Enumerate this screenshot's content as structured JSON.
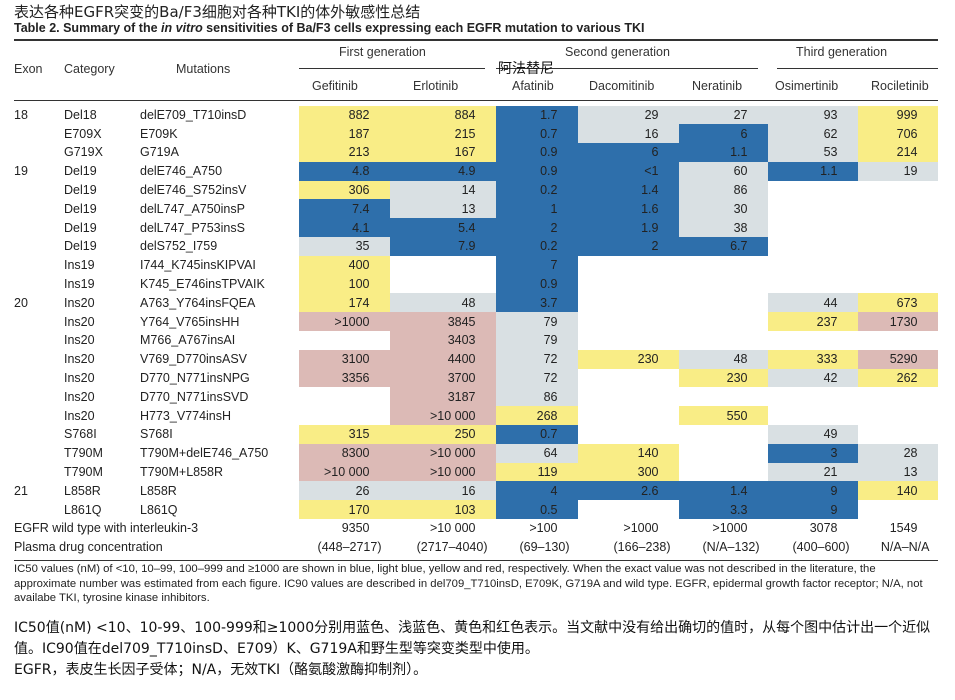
{
  "title_cn": "表达各种EGFR突变的Ba/F3细胞对各种TKI的体外敏感性总结",
  "title_en": {
    "prefix": "Table 2.   Summary of the ",
    "italic": "in vitro",
    "suffix": " sensitivities of Ba/F3 cells expressing each EGFR mutation to various TKI"
  },
  "headers": {
    "exon": "Exon",
    "category": "Category",
    "mutations": "Mutations",
    "groups": [
      "First generation",
      "Second generation",
      "Third generation"
    ],
    "drugs": [
      "Gefitinib",
      "Erlotinib",
      "Afatinib",
      "Dacomitinib",
      "Neratinib",
      "Osimertinib",
      "Rociletinib"
    ],
    "afatinib_cn": "阿法替尼"
  },
  "colors": {
    "y": "#f9ed86",
    "b": "#2e6fab",
    "l": "#d9e0e3",
    "r": "#dcbab6"
  },
  "rows": [
    {
      "exon": "18",
      "cat": "Del18",
      "mut": "delE709_T710insD",
      "cells": [
        [
          "882",
          "y"
        ],
        [
          "884",
          "y"
        ],
        [
          "1.7",
          "b"
        ],
        [
          "29",
          "l"
        ],
        [
          "27",
          "l"
        ],
        [
          "93",
          "l"
        ],
        [
          "999",
          "y"
        ]
      ]
    },
    {
      "exon": "",
      "cat": "E709X",
      "mut": "E709K",
      "cells": [
        [
          "187",
          "y"
        ],
        [
          "215",
          "y"
        ],
        [
          "0.7",
          "b"
        ],
        [
          "16",
          "l"
        ],
        [
          "6",
          "b"
        ],
        [
          "62",
          "l"
        ],
        [
          "706",
          "y"
        ]
      ]
    },
    {
      "exon": "",
      "cat": "G719X",
      "mut": "G719A",
      "cells": [
        [
          "213",
          "y"
        ],
        [
          "167",
          "y"
        ],
        [
          "0.9",
          "b"
        ],
        [
          "6",
          "b"
        ],
        [
          "1.1",
          "b"
        ],
        [
          "53",
          "l"
        ],
        [
          "214",
          "y"
        ]
      ]
    },
    {
      "exon": "19",
      "cat": "Del19",
      "mut": "delE746_A750",
      "cells": [
        [
          "4.8",
          "b"
        ],
        [
          "4.9",
          "b"
        ],
        [
          "0.9",
          "b"
        ],
        [
          "<1",
          "b"
        ],
        [
          "60",
          "l"
        ],
        [
          "1.1",
          "b"
        ],
        [
          "19",
          "l"
        ]
      ]
    },
    {
      "exon": "",
      "cat": "Del19",
      "mut": "delE746_S752insV",
      "cells": [
        [
          "306",
          "y"
        ],
        [
          "14",
          "l"
        ],
        [
          "0.2",
          "b"
        ],
        [
          "1.4",
          "b"
        ],
        [
          "86",
          "l"
        ],
        [
          "",
          ""
        ],
        [
          "",
          ""
        ]
      ]
    },
    {
      "exon": "",
      "cat": "Del19",
      "mut": "delL747_A750insP",
      "cells": [
        [
          "7.4",
          "b"
        ],
        [
          "13",
          "l"
        ],
        [
          "1",
          "b"
        ],
        [
          "1.6",
          "b"
        ],
        [
          "30",
          "l"
        ],
        [
          "",
          ""
        ],
        [
          "",
          ""
        ]
      ]
    },
    {
      "exon": "",
      "cat": "Del19",
      "mut": "delL747_P753insS",
      "cells": [
        [
          "4.1",
          "b"
        ],
        [
          "5.4",
          "b"
        ],
        [
          "2",
          "b"
        ],
        [
          "1.9",
          "b"
        ],
        [
          "38",
          "l"
        ],
        [
          "",
          ""
        ],
        [
          "",
          ""
        ]
      ]
    },
    {
      "exon": "",
      "cat": "Del19",
      "mut": "delS752_I759",
      "cells": [
        [
          "35",
          "l"
        ],
        [
          "7.9",
          "b"
        ],
        [
          "0.2",
          "b"
        ],
        [
          "2",
          "b"
        ],
        [
          "6.7",
          "b"
        ],
        [
          "",
          ""
        ],
        [
          "",
          ""
        ]
      ]
    },
    {
      "exon": "",
      "cat": "Ins19",
      "mut": "I744_K745insKIPVAI",
      "cells": [
        [
          "400",
          "y"
        ],
        [
          "",
          ""
        ],
        [
          "7",
          "b"
        ],
        [
          "",
          ""
        ],
        [
          "",
          ""
        ],
        [
          "",
          ""
        ],
        [
          "",
          ""
        ]
      ]
    },
    {
      "exon": "",
      "cat": "Ins19",
      "mut": "K745_E746insTPVAIK",
      "cells": [
        [
          "100",
          "y"
        ],
        [
          "",
          ""
        ],
        [
          "0.9",
          "b"
        ],
        [
          "",
          ""
        ],
        [
          "",
          ""
        ],
        [
          "",
          ""
        ],
        [
          "",
          ""
        ]
      ]
    },
    {
      "exon": "20",
      "cat": "Ins20",
      "mut": "A763_Y764insFQEA",
      "cells": [
        [
          "174",
          "y"
        ],
        [
          "48",
          "l"
        ],
        [
          "3.7",
          "b"
        ],
        [
          "",
          ""
        ],
        [
          "",
          ""
        ],
        [
          "44",
          "l"
        ],
        [
          "673",
          "y"
        ]
      ]
    },
    {
      "exon": "",
      "cat": "Ins20",
      "mut": "Y764_V765insHH",
      "cells": [
        [
          ">1000",
          "r"
        ],
        [
          "3845",
          "r"
        ],
        [
          "79",
          "l"
        ],
        [
          "",
          ""
        ],
        [
          "",
          ""
        ],
        [
          "237",
          "y"
        ],
        [
          "1730",
          "r"
        ]
      ]
    },
    {
      "exon": "",
      "cat": "Ins20",
      "mut": "M766_A767insAI",
      "cells": [
        [
          "",
          ""
        ],
        [
          "3403",
          "r"
        ],
        [
          "79",
          "l"
        ],
        [
          "",
          ""
        ],
        [
          "",
          ""
        ],
        [
          "",
          ""
        ],
        [
          "",
          ""
        ]
      ]
    },
    {
      "exon": "",
      "cat": "Ins20",
      "mut": "V769_D770insASV",
      "cells": [
        [
          "3100",
          "r"
        ],
        [
          "4400",
          "r"
        ],
        [
          "72",
          "l"
        ],
        [
          "230",
          "y"
        ],
        [
          "48",
          "l"
        ],
        [
          "333",
          "y"
        ],
        [
          "5290",
          "r"
        ]
      ]
    },
    {
      "exon": "",
      "cat": "Ins20",
      "mut": "D770_N771insNPG",
      "cells": [
        [
          "3356",
          "r"
        ],
        [
          "3700",
          "r"
        ],
        [
          "72",
          "l"
        ],
        [
          "",
          ""
        ],
        [
          "230",
          "y"
        ],
        [
          "42",
          "l"
        ],
        [
          "262",
          "y"
        ]
      ]
    },
    {
      "exon": "",
      "cat": "Ins20",
      "mut": "D770_N771insSVD",
      "cells": [
        [
          "",
          ""
        ],
        [
          "3187",
          "r"
        ],
        [
          "86",
          "l"
        ],
        [
          "",
          ""
        ],
        [
          "",
          ""
        ],
        [
          "",
          ""
        ],
        [
          "",
          ""
        ]
      ]
    },
    {
      "exon": "",
      "cat": "Ins20",
      "mut": "H773_V774insH",
      "cells": [
        [
          "",
          ""
        ],
        [
          ">10 000",
          "r"
        ],
        [
          "268",
          "y"
        ],
        [
          "",
          ""
        ],
        [
          "550",
          "y"
        ],
        [
          "",
          ""
        ],
        [
          "",
          ""
        ]
      ]
    },
    {
      "exon": "",
      "cat": "S768I",
      "mut": "S768I",
      "cells": [
        [
          "315",
          "y"
        ],
        [
          "250",
          "y"
        ],
        [
          "0.7",
          "b"
        ],
        [
          "",
          ""
        ],
        [
          "",
          ""
        ],
        [
          "49",
          "l"
        ],
        [
          "",
          ""
        ]
      ]
    },
    {
      "exon": "",
      "cat": "T790M",
      "mut": "T790M+delE746_A750",
      "cells": [
        [
          "8300",
          "r"
        ],
        [
          ">10 000",
          "r"
        ],
        [
          "64",
          "l"
        ],
        [
          "140",
          "y"
        ],
        [
          "",
          ""
        ],
        [
          "3",
          "b"
        ],
        [
          "28",
          "l"
        ]
      ]
    },
    {
      "exon": "",
      "cat": "T790M",
      "mut": "T790M+L858R",
      "cells": [
        [
          ">10 000",
          "r"
        ],
        [
          ">10 000",
          "r"
        ],
        [
          "119",
          "y"
        ],
        [
          "300",
          "y"
        ],
        [
          "",
          ""
        ],
        [
          "21",
          "l"
        ],
        [
          "13",
          "l"
        ]
      ]
    },
    {
      "exon": "21",
      "cat": "L858R",
      "mut": "L858R",
      "cells": [
        [
          "26",
          "l"
        ],
        [
          "16",
          "l"
        ],
        [
          "4",
          "b"
        ],
        [
          "2.6",
          "b"
        ],
        [
          "1.4",
          "b"
        ],
        [
          "9",
          "b"
        ],
        [
          "140",
          "y"
        ]
      ]
    },
    {
      "exon": "",
      "cat": "L861Q",
      "mut": "L861Q",
      "cells": [
        [
          "170",
          "y"
        ],
        [
          "103",
          "y"
        ],
        [
          "0.5",
          "b"
        ],
        [
          "",
          ""
        ],
        [
          "3.3",
          "b"
        ],
        [
          "9",
          "b"
        ],
        [
          "",
          ""
        ]
      ]
    }
  ],
  "wild_type": {
    "label": "EGFR wild type with interleukin-3",
    "values": [
      "9350",
      ">10 000",
      ">100",
      ">1000",
      ">1000",
      "3078",
      "1549"
    ]
  },
  "plasma": {
    "label": "Plasma drug concentration",
    "values": [
      "(448–2717)",
      "(2717–4040)",
      "(69–130)",
      "(166–238)",
      "(N/A–132)",
      "(400–600)",
      "N/A–N/A"
    ]
  },
  "footnote": "IC50 values (nM) of <10, 10–99, 100–999 and ≥1000 are shown in blue, light blue, yellow and red, respectively. When the exact value was not described in the literature, the approximate number was estimated from each figure. IC90 values are described in del709_T710insD, E709K, G719A and wild type. EGFR, epidermal growth factor receptor;  N/A,  not availabe TKI, tyrosine kinase inhibitors.",
  "note_cn": [
    "IC50值(nM) <10、10-99、100-999和≥1000分别用蓝色、浅蓝色、黄色和红色表示。当文献中没有给出确切的值时，从每个图中估计出一个近似值。IC90值在del709_T710insD、E709）K、G719A和野生型等突变类型中使用。",
    "EGFR，表皮生长因子受体；N/A，无效TKI（酪氨酸激酶抑制剂）。"
  ]
}
